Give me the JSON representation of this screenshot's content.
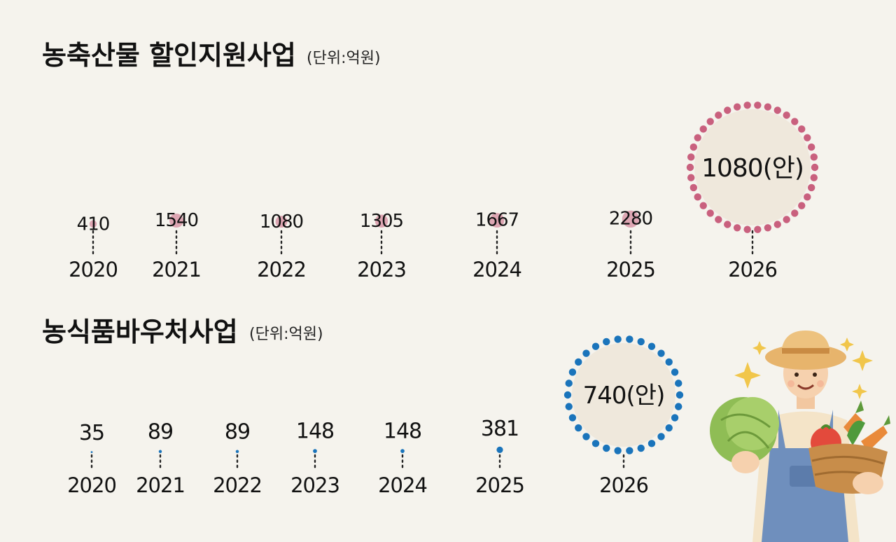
{
  "chart_data": [
    {
      "type": "bubble",
      "title": "농축산물 할인지원사업",
      "unit": "(단위:억원)",
      "categories": [
        "2020",
        "2021",
        "2022",
        "2023",
        "2024",
        "2025",
        "2026"
      ],
      "values": [
        410,
        1540,
        1080,
        1305,
        1667,
        2280,
        1080
      ],
      "value_labels": [
        "410",
        "1540",
        "1080",
        "1305",
        "1667",
        "2280",
        "1080(안)"
      ],
      "proposed_index": 6,
      "colors": {
        "bubble": "#c9607e",
        "proposed_fill": "#efe8dc",
        "proposed_dots": "#c9607e"
      }
    },
    {
      "type": "bubble",
      "title": "농식품바우처사업",
      "unit": "(단위:억원)",
      "categories": [
        "2020",
        "2021",
        "2022",
        "2023",
        "2024",
        "2025",
        "2026"
      ],
      "values": [
        35,
        89,
        89,
        148,
        148,
        381,
        740
      ],
      "value_labels": [
        "35",
        "89",
        "89",
        "148",
        "148",
        "381",
        "740(안)"
      ],
      "proposed_index": 6,
      "colors": {
        "bubble": "#1a74bb",
        "proposed_fill": "#efe8dc",
        "proposed_dots": "#1a74bb"
      }
    }
  ],
  "illustration": {
    "name": "farmer-with-vegetables-illustration"
  }
}
